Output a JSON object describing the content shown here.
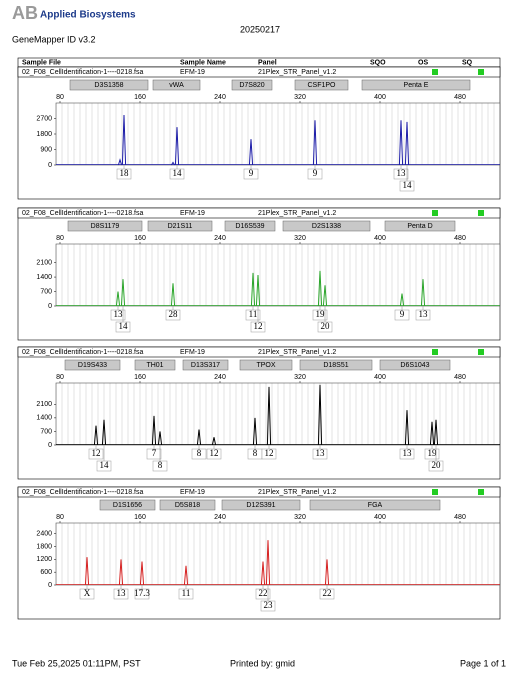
{
  "header": {
    "brand": "Applied Biosystems",
    "software": "GeneMapper ID v3.2",
    "date": "20250217",
    "columns": [
      "Sample File",
      "Sample Name",
      "Panel",
      "SQO",
      "OS",
      "SQ"
    ]
  },
  "chart_data": [
    {
      "type": "peak",
      "color": "#1c1ca8",
      "sample": {
        "file": "02_F08_CellIdentification-1----0218.fsa",
        "name": "EFM-19",
        "panel": "21Plex_STR_Panel_v1.2"
      },
      "xlim": [
        76,
        520
      ],
      "xticks": [
        80,
        160,
        240,
        320,
        400,
        480
      ],
      "ylim": [
        0,
        3600
      ],
      "yticks": [
        0,
        900,
        1800,
        2700
      ],
      "loci": {
        "names": [
          "D3S1358",
          "vWA",
          "D7S820",
          "CSF1PO",
          "Penta E"
        ],
        "start": [
          90,
          173,
          252,
          315,
          382
        ],
        "end": [
          168,
          220,
          292,
          368,
          490
        ]
      },
      "peaks": {
        "x": [
          140,
          144,
          193,
          197,
          271,
          335,
          421,
          427
        ],
        "values": [
          300,
          2900,
          150,
          2200,
          1500,
          2600,
          2600,
          2500
        ],
        "labels": [
          null,
          "18",
          null,
          "14",
          "9",
          "9",
          "13",
          "14"
        ]
      }
    },
    {
      "type": "peak",
      "color": "#2aa52a",
      "sample": {
        "file": "02_F08_CellIdentification-1----0218.fsa",
        "name": "EFM-19",
        "panel": "21Plex_STR_Panel_v1.2"
      },
      "xlim": [
        76,
        520
      ],
      "xticks": [
        80,
        160,
        240,
        320,
        400,
        480
      ],
      "ylim": [
        0,
        3000
      ],
      "yticks": [
        0,
        700,
        1400,
        2100
      ],
      "loci": {
        "names": [
          "D8S1179",
          "D21S11",
          "D16S539",
          "D2S1338",
          "Penta D"
        ],
        "start": [
          88,
          168,
          245,
          303,
          405
        ],
        "end": [
          162,
          232,
          295,
          390,
          475
        ]
      },
      "peaks": {
        "x": [
          138,
          143,
          193,
          273,
          278,
          340,
          345,
          422,
          443
        ],
        "values": [
          700,
          1300,
          1100,
          1600,
          1500,
          1700,
          1000,
          600,
          1300
        ],
        "labels": [
          "13",
          "14",
          "28",
          "11",
          "12",
          "19",
          "20",
          "9",
          "13"
        ]
      }
    },
    {
      "type": "peak",
      "color": "#000000",
      "sample": {
        "file": "02_F08_CellIdentification-1----0218.fsa",
        "name": "EFM-19",
        "panel": "21Plex_STR_Panel_v1.2"
      },
      "xlim": [
        76,
        520
      ],
      "xticks": [
        80,
        160,
        240,
        320,
        400,
        480
      ],
      "ylim": [
        0,
        3200
      ],
      "yticks": [
        0,
        700,
        1400,
        2100
      ],
      "loci": {
        "names": [
          "D19S433",
          "TH01",
          "D13S317",
          "TPOX",
          "D18S51",
          "D6S1043"
        ],
        "start": [
          85,
          155,
          203,
          260,
          320,
          400
        ],
        "end": [
          140,
          195,
          248,
          312,
          392,
          470
        ]
      },
      "peaks": {
        "x": [
          116,
          124,
          174,
          180,
          219,
          234,
          275,
          289,
          340,
          427,
          452,
          456
        ],
        "values": [
          1000,
          1300,
          1500,
          700,
          800,
          400,
          1400,
          3000,
          3100,
          1800,
          1200,
          1300
        ],
        "labels": [
          "12",
          "14",
          "7",
          "8",
          "8",
          "12",
          "8",
          "12",
          "13",
          "13",
          "19",
          "20"
        ]
      }
    },
    {
      "type": "peak",
      "color": "#d62020",
      "sample": {
        "file": "02_F08_CellIdentification-1----0218.fsa",
        "name": "EFM-19",
        "panel": "21Plex_STR_Panel_v1.2"
      },
      "xlim": [
        76,
        520
      ],
      "xticks": [
        80,
        160,
        240,
        320,
        400,
        480
      ],
      "ylim": [
        0,
        2900
      ],
      "yticks": [
        0,
        600,
        1200,
        1800,
        2400
      ],
      "loci": {
        "names": [
          "D1S1656",
          "D5S818",
          "D12S391",
          "FGA"
        ],
        "start": [
          120,
          180,
          242,
          330
        ],
        "end": [
          175,
          235,
          320,
          460
        ]
      },
      "peaks": {
        "x": [
          107,
          141,
          162,
          206,
          283,
          288,
          347
        ],
        "values": [
          1300,
          1200,
          1100,
          900,
          1100,
          2100,
          1200
        ],
        "labels": [
          "X",
          "13",
          "17.3",
          "11",
          "22",
          "23",
          "22"
        ]
      }
    }
  ],
  "footer": {
    "printed": "Tue Feb 25,2025 01:11PM, PST",
    "user": "Printed by: gmid",
    "page": "Page 1 of 1"
  }
}
